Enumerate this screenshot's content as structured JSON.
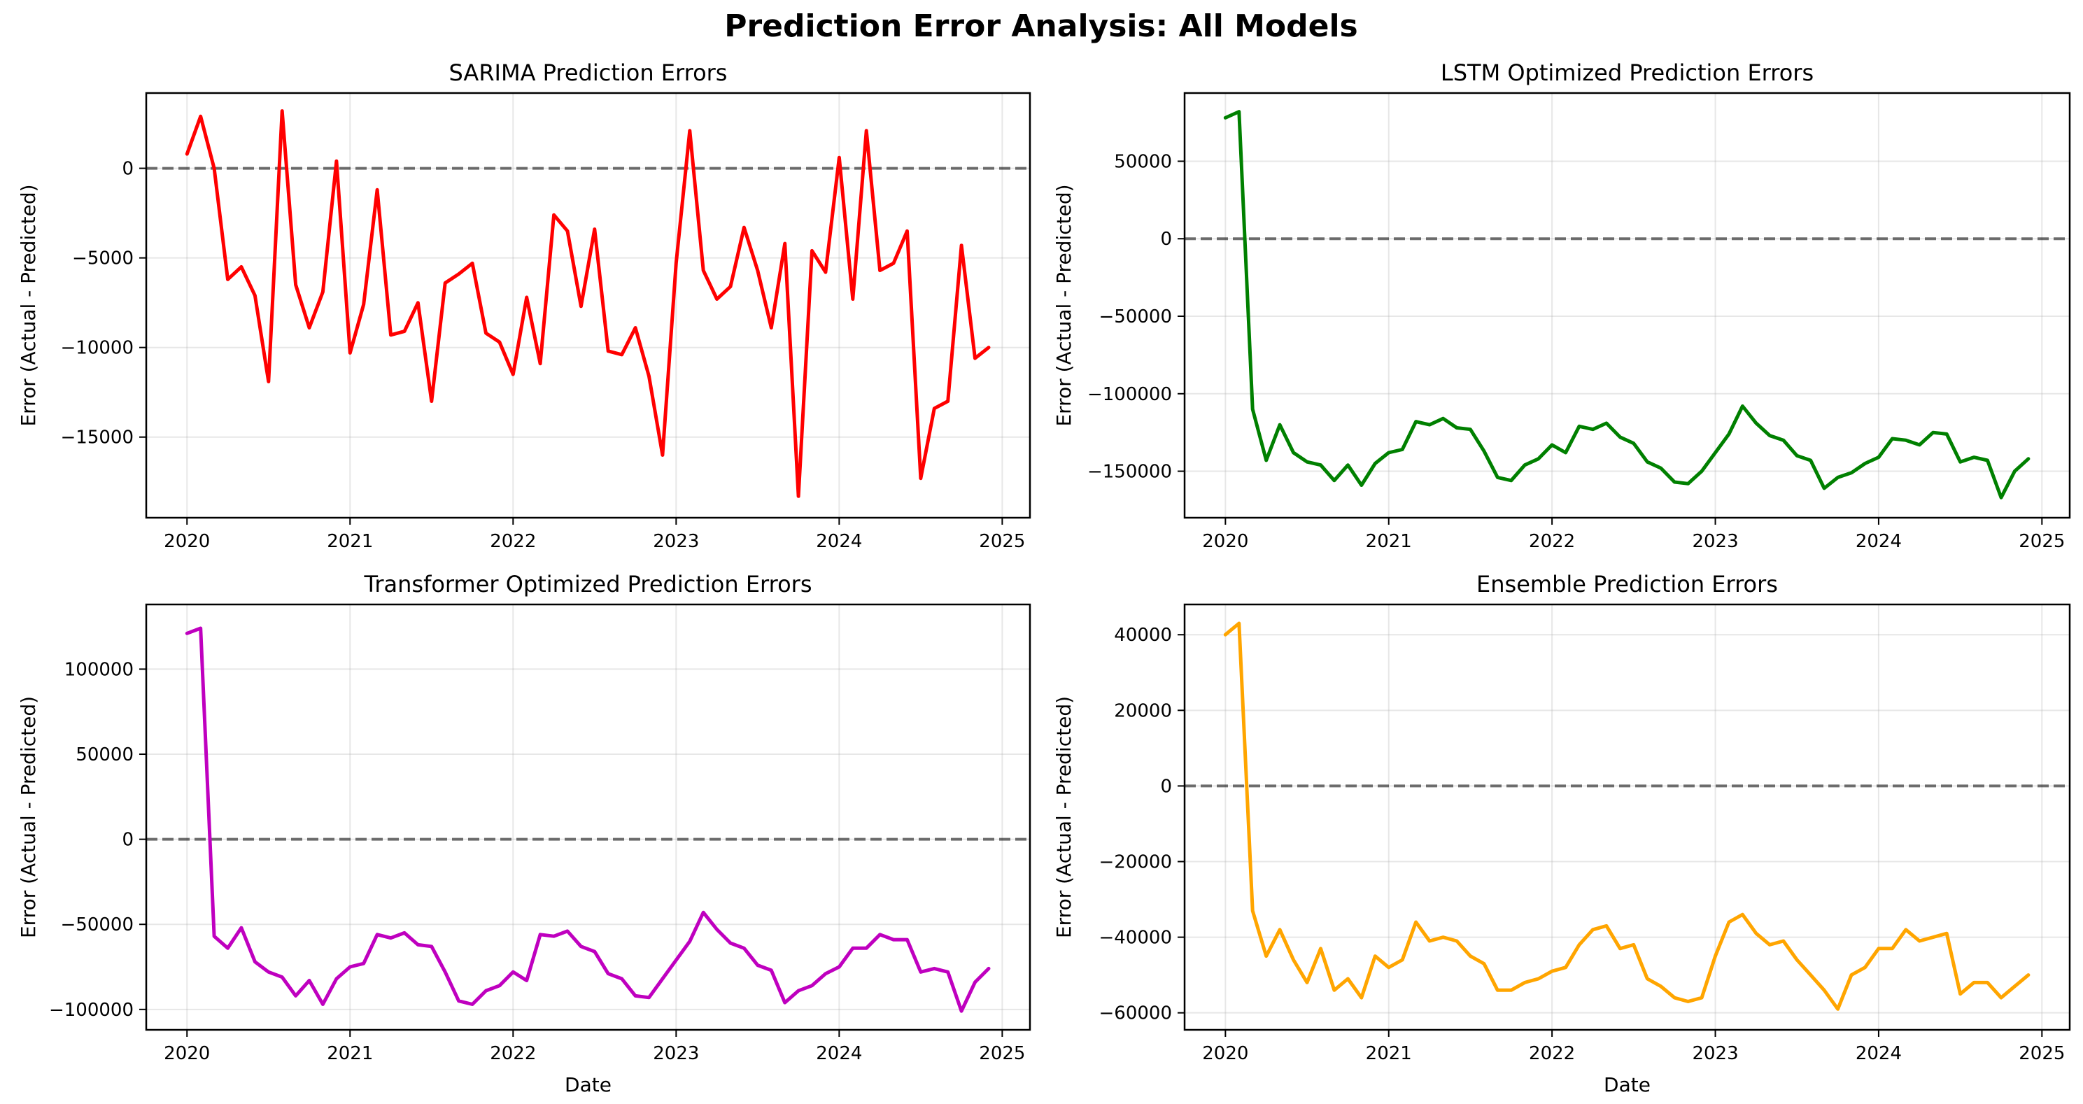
{
  "figure": {
    "title": "Prediction Error Analysis: All Models"
  },
  "chart_data": [
    {
      "type": "line",
      "title": "SARIMA Prediction Errors",
      "xlabel": "",
      "ylabel": "Error (Actual - Predicted)",
      "x_ticks": [
        "2020",
        "2021",
        "2022",
        "2023",
        "2024",
        "2025"
      ],
      "y_ticks": [
        0,
        -5000,
        -10000,
        -15000
      ],
      "y_tick_labels": [
        "0",
        "−5000",
        "−10000",
        "−15000"
      ],
      "xlim": [
        2019.75,
        2025.17
      ],
      "ylim": [
        -19500,
        4200
      ],
      "grid": true,
      "reference_line": 0,
      "color": "#ff0000",
      "series": [
        {
          "x_start": "2020-01",
          "frequency": "monthly",
          "values": [
            800,
            2900,
            0,
            -6200,
            -5500,
            -7100,
            -11900,
            3200,
            -6500,
            -8900,
            -6900,
            400,
            -10300,
            -7600,
            -1200,
            -9300,
            -9100,
            -7500,
            -13000,
            -6400,
            -5900,
            -5300,
            -9200,
            -9700,
            -11500,
            -7200,
            -10900,
            -2600,
            -3500,
            -7700,
            -3400,
            -10200,
            -10400,
            -8900,
            -11600,
            -16000,
            -5300,
            2100,
            -5700,
            -7300,
            -6600,
            -3300,
            -5700,
            -8900,
            -4200,
            -18300,
            -4600,
            -5800,
            600,
            -7300,
            2100,
            -5700,
            -5300,
            -3500,
            -17300,
            -13400,
            -13000,
            -4300,
            -10600,
            -10000
          ]
        }
      ]
    },
    {
      "type": "line",
      "title": "LSTM Optimized Prediction Errors",
      "xlabel": "",
      "ylabel": "Error (Actual - Predicted)",
      "x_ticks": [
        "2020",
        "2021",
        "2022",
        "2023",
        "2024",
        "2025"
      ],
      "y_ticks": [
        50000,
        0,
        -50000,
        -100000,
        -150000
      ],
      "y_tick_labels": [
        "50000",
        "0",
        "−50000",
        "−100000",
        "−150000"
      ],
      "xlim": [
        2019.75,
        2025.17
      ],
      "ylim": [
        -180000,
        94000
      ],
      "grid": true,
      "reference_line": 0,
      "color": "#008000",
      "series": [
        {
          "x_start": "2020-01",
          "frequency": "monthly",
          "values": [
            78000,
            82000,
            -110000,
            -143000,
            -120000,
            -138000,
            -144000,
            -146000,
            -156000,
            -146000,
            -159000,
            -145000,
            -138000,
            -136000,
            -118000,
            -120000,
            -116000,
            -122000,
            -123000,
            -137000,
            -154000,
            -156000,
            -146000,
            -142000,
            -133000,
            -138000,
            -121000,
            -123000,
            -119000,
            -128000,
            -132000,
            -144000,
            -148000,
            -157000,
            -158000,
            -150000,
            -138000,
            -126000,
            -108000,
            -119000,
            -127000,
            -130000,
            -140000,
            -143000,
            -161000,
            -154000,
            -151000,
            -145000,
            -141000,
            -129000,
            -130000,
            -133000,
            -125000,
            -126000,
            -144000,
            -141000,
            -143000,
            -167000,
            -150000,
            -142000
          ]
        }
      ]
    },
    {
      "type": "line",
      "title": "Transformer Optimized Prediction Errors",
      "xlabel": "Date",
      "ylabel": "Error (Actual - Predicted)",
      "x_ticks": [
        "2020",
        "2021",
        "2022",
        "2023",
        "2024",
        "2025"
      ],
      "y_ticks": [
        100000,
        50000,
        0,
        -50000,
        -100000
      ],
      "y_tick_labels": [
        "100000",
        "50000",
        "0",
        "−50000",
        "−100000"
      ],
      "xlim": [
        2019.75,
        2025.17
      ],
      "ylim": [
        -112000,
        138000
      ],
      "grid": true,
      "reference_line": 0,
      "color": "#bf00bf",
      "series": [
        {
          "x_start": "2020-01",
          "frequency": "monthly",
          "values": [
            121000,
            124000,
            -57000,
            -64000,
            -52000,
            -72000,
            -78000,
            -81000,
            -92000,
            -83000,
            -97000,
            -82000,
            -75000,
            -73000,
            -56000,
            -58000,
            -55000,
            -62000,
            -63000,
            -78000,
            -95000,
            -97000,
            -89000,
            -86000,
            -78000,
            -83000,
            -56000,
            -57000,
            -54000,
            -63000,
            -66000,
            -79000,
            -82000,
            -92000,
            -93000,
            -82000,
            -71000,
            -60000,
            -43000,
            -53000,
            -61000,
            -64000,
            -74000,
            -77000,
            -96000,
            -89000,
            -86000,
            -79000,
            -75000,
            -64000,
            -64000,
            -56000,
            -59000,
            -59000,
            -78000,
            -76000,
            -78000,
            -101000,
            -84000,
            -76000
          ]
        }
      ]
    },
    {
      "type": "line",
      "title": "Ensemble Prediction Errors",
      "xlabel": "Date",
      "ylabel": "Error (Actual - Predicted)",
      "x_ticks": [
        "2020",
        "2021",
        "2022",
        "2023",
        "2024",
        "2025"
      ],
      "y_ticks": [
        40000,
        20000,
        0,
        -20000,
        -40000,
        -60000
      ],
      "y_tick_labels": [
        "40000",
        "20000",
        "0",
        "−20000",
        "−40000",
        "−60000"
      ],
      "xlim": [
        2019.75,
        2025.17
      ],
      "ylim": [
        -64500,
        48000
      ],
      "grid": true,
      "reference_line": 0,
      "color": "#ffa500",
      "series": [
        {
          "x_start": "2020-01",
          "frequency": "monthly",
          "values": [
            40000,
            43000,
            -33000,
            -45000,
            -38000,
            -46000,
            -52000,
            -43000,
            -54000,
            -51000,
            -56000,
            -45000,
            -48000,
            -46000,
            -36000,
            -41000,
            -40000,
            -41000,
            -45000,
            -47000,
            -54000,
            -54000,
            -52000,
            -51000,
            -49000,
            -48000,
            -42000,
            -38000,
            -37000,
            -43000,
            -42000,
            -51000,
            -53000,
            -56000,
            -57000,
            -56000,
            -45000,
            -36000,
            -34000,
            -39000,
            -42000,
            -41000,
            -46000,
            -50000,
            -54000,
            -59000,
            -50000,
            -48000,
            -43000,
            -43000,
            -38000,
            -41000,
            -40000,
            -39000,
            -55000,
            -52000,
            -52000,
            -56000,
            -53000,
            -50000
          ]
        }
      ]
    }
  ]
}
